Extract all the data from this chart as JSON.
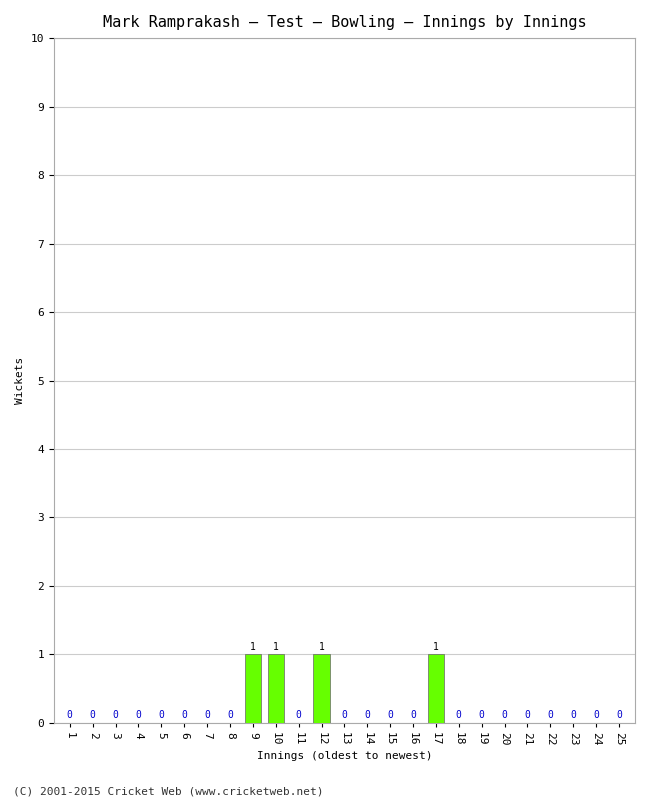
{
  "title": "Mark Ramprakash – Test – Bowling – Innings by Innings",
  "xlabel": "Innings (oldest to newest)",
  "ylabel": "Wickets",
  "footer": "(C) 2001-2015 Cricket Web (www.cricketweb.net)",
  "num_innings": 25,
  "wickets": [
    0,
    0,
    0,
    0,
    0,
    0,
    0,
    0,
    1,
    1,
    0,
    1,
    0,
    0,
    0,
    0,
    1,
    0,
    0,
    0,
    0,
    0,
    0,
    0,
    0
  ],
  "bar_color_nonzero": "#66ff00",
  "bar_color_zero": "#ffffff",
  "label_color_nonzero": "#000000",
  "label_color_zero": "#0000cc",
  "ylim": [
    0,
    10
  ],
  "yticks": [
    0,
    1,
    2,
    3,
    4,
    5,
    6,
    7,
    8,
    9,
    10
  ],
  "background_color": "#ffffff",
  "grid_color": "#cccccc",
  "title_fontsize": 11,
  "axis_label_fontsize": 8,
  "tick_fontsize": 8,
  "bar_label_fontsize": 7,
  "footer_fontsize": 8
}
